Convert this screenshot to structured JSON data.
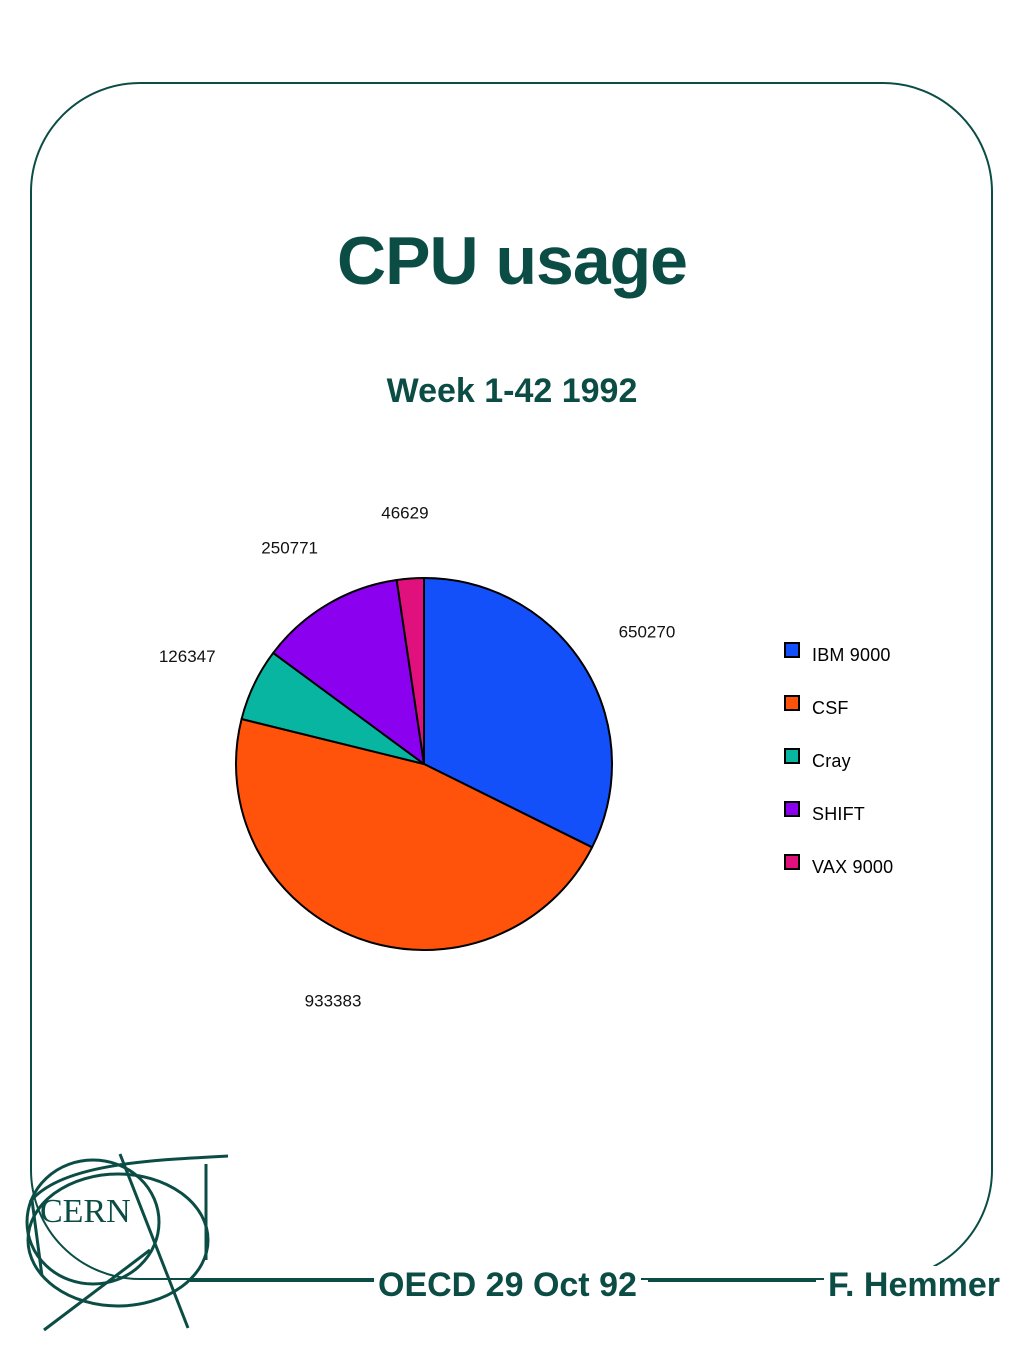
{
  "header": {
    "title": "CPU usage",
    "subtitle": "Week 1-42 1992"
  },
  "footer": {
    "event": "OECD 29 Oct 92",
    "author": "F. Hemmer"
  },
  "logo": {
    "text": "CERN",
    "color": "#0b4d45"
  },
  "colors": {
    "frame": "#0b4d45",
    "title": "#0b4d45"
  },
  "chart_data": {
    "type": "pie",
    "title": "CPU usage",
    "subtitle": "Week 1-42 1992",
    "legend_position": "right",
    "categories": [
      "IBM 9000",
      "CSF",
      "Cray",
      "SHIFT",
      "VAX 9000"
    ],
    "values": [
      650270,
      933383,
      126347,
      250771,
      46629
    ],
    "value_labels": [
      "650270",
      "933383",
      "126347",
      "250771",
      "46629"
    ],
    "colors": [
      "#1450fa",
      "#ff520a",
      "#08b5a0",
      "#8c00f0",
      "#e0107c"
    ],
    "start_angle_deg": 0,
    "direction": "clockwise"
  }
}
